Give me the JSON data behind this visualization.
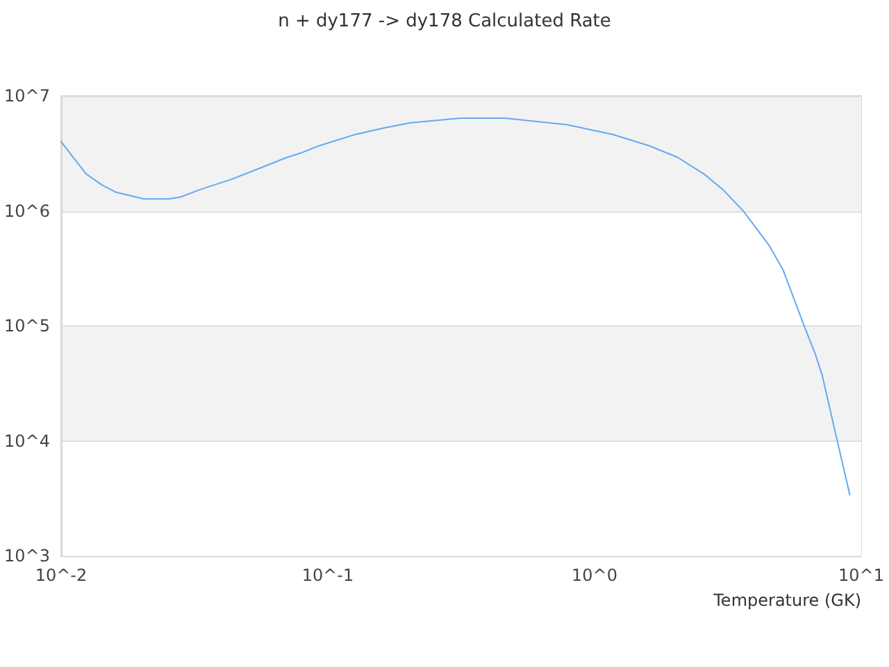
{
  "chart_data": {
    "type": "line",
    "title": "n + dy177 -> dy178 Calculated Rate",
    "xlabel": "Temperature (GK)",
    "x": [
      0.01,
      0.0113,
      0.0124,
      0.0143,
      0.0161,
      0.0204,
      0.0254,
      0.0281,
      0.0329,
      0.0435,
      0.0574,
      0.07,
      0.0788,
      0.0924,
      0.127,
      0.161,
      0.204,
      0.316,
      0.461,
      0.789,
      1.17,
      1.61,
      2.05,
      2.59,
      3.04,
      3.63,
      4.52,
      5.09,
      6.07,
      6.73,
      7.14,
      8.04,
      9.06
    ],
    "series": [
      {
        "color": "#66a8f0",
        "values": [
          4000000,
          2780000,
          2100000,
          1670000,
          1450000,
          1270000,
          1270000,
          1320000,
          1520000,
          1880000,
          2420000,
          2910000,
          3170000,
          3670000,
          4620000,
          5230000,
          5840000,
          6410000,
          6410000,
          5620000,
          4620000,
          3670000,
          2920000,
          2070000,
          1520000,
          985000,
          499000,
          308000,
          104000,
          56500,
          37200,
          11200,
          3400
        ]
      }
    ],
    "log": "xy",
    "xlim": [
      0.01,
      10
    ],
    "ylim": [
      1000,
      10000000
    ],
    "xticks": [
      {
        "value": 0.01,
        "label": "10^-2"
      },
      {
        "value": 0.1,
        "label": "10^-1"
      },
      {
        "value": 1,
        "label": "10^0"
      },
      {
        "value": 10,
        "label": "10^1"
      }
    ],
    "yticks": [
      {
        "value": 1000,
        "label": "10^3"
      },
      {
        "value": 10000,
        "label": "10^4"
      },
      {
        "value": 100000,
        "label": "10^5"
      },
      {
        "value": 1000000,
        "label": "10^6"
      },
      {
        "value": 10000000,
        "label": "10^7"
      }
    ],
    "grid": "y",
    "marker": "none",
    "line_style": "solid"
  }
}
